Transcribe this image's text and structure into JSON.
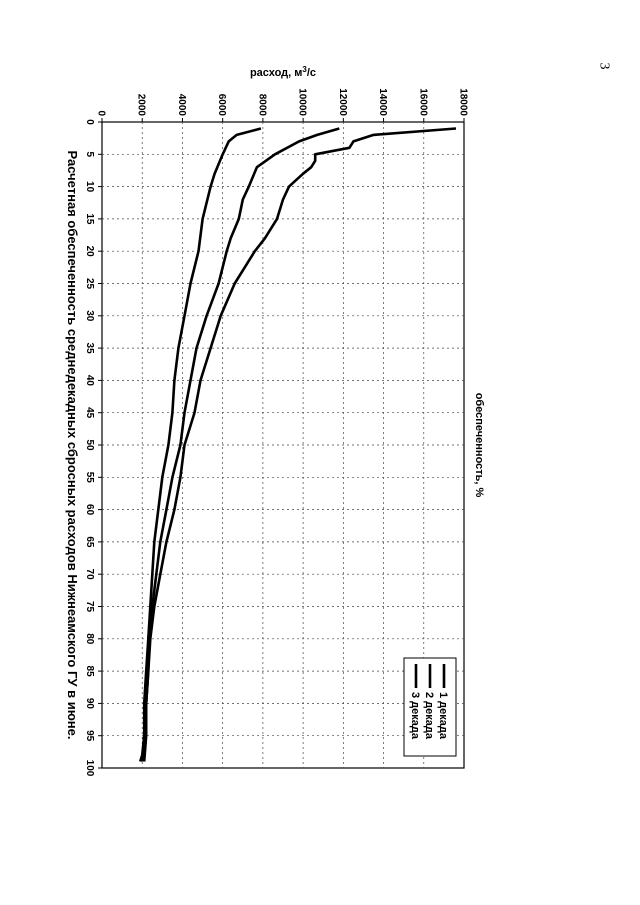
{
  "page_number": "3",
  "chart_data": {
    "type": "line",
    "title": "Расчетная обеспеченность среднедекадных сбросных расходов Нижнеамского ГУ в июне.",
    "xlabel": "обеспеченность, %",
    "ylabel": "расход, м³/с",
    "xlim": [
      0,
      100
    ],
    "ylim": [
      0,
      18000
    ],
    "x_ticks": [
      "0",
      "5",
      "10",
      "15",
      "20",
      "25",
      "30",
      "35",
      "40",
      "45",
      "50",
      "55",
      "60",
      "65",
      "70",
      "75",
      "80",
      "85",
      "90",
      "95",
      "100"
    ],
    "y_ticks": [
      "0",
      "2000",
      "4000",
      "6000",
      "8000",
      "10000",
      "12000",
      "14000",
      "16000",
      "18000"
    ],
    "grid": true,
    "legend_position": "top-right",
    "series": [
      {
        "name": "1 декада",
        "points": [
          [
            1,
            17600
          ],
          [
            2,
            13500
          ],
          [
            3,
            12500
          ],
          [
            4,
            12300
          ],
          [
            5,
            10600
          ],
          [
            6,
            10600
          ],
          [
            7,
            10400
          ],
          [
            8,
            10000
          ],
          [
            10,
            9300
          ],
          [
            12,
            9000
          ],
          [
            15,
            8700
          ],
          [
            18,
            8100
          ],
          [
            20,
            7600
          ],
          [
            22,
            7200
          ],
          [
            25,
            6600
          ],
          [
            30,
            5900
          ],
          [
            35,
            5400
          ],
          [
            40,
            4900
          ],
          [
            45,
            4600
          ],
          [
            50,
            4100
          ],
          [
            55,
            3900
          ],
          [
            60,
            3600
          ],
          [
            65,
            3200
          ],
          [
            70,
            2900
          ],
          [
            75,
            2600
          ],
          [
            80,
            2400
          ],
          [
            85,
            2300
          ],
          [
            90,
            2200
          ],
          [
            95,
            2100
          ],
          [
            98,
            2000
          ],
          [
            99,
            1900
          ]
        ]
      },
      {
        "name": "2 декада",
        "points": [
          [
            1,
            11800
          ],
          [
            2,
            10700
          ],
          [
            3,
            9800
          ],
          [
            5,
            8600
          ],
          [
            7,
            7700
          ],
          [
            10,
            7300
          ],
          [
            12,
            7000
          ],
          [
            15,
            6800
          ],
          [
            18,
            6400
          ],
          [
            20,
            6200
          ],
          [
            25,
            5800
          ],
          [
            30,
            5200
          ],
          [
            35,
            4700
          ],
          [
            40,
            4400
          ],
          [
            45,
            4100
          ],
          [
            50,
            3900
          ],
          [
            55,
            3500
          ],
          [
            60,
            3200
          ],
          [
            65,
            2900
          ],
          [
            70,
            2700
          ],
          [
            75,
            2500
          ],
          [
            80,
            2300
          ],
          [
            85,
            2200
          ],
          [
            90,
            2100
          ],
          [
            95,
            2100
          ],
          [
            99,
            2000
          ]
        ]
      },
      {
        "name": "3 декада",
        "points": [
          [
            1,
            7900
          ],
          [
            2,
            6700
          ],
          [
            3,
            6300
          ],
          [
            5,
            6000
          ],
          [
            8,
            5600
          ],
          [
            10,
            5400
          ],
          [
            15,
            5000
          ],
          [
            20,
            4800
          ],
          [
            25,
            4400
          ],
          [
            30,
            4100
          ],
          [
            35,
            3800
          ],
          [
            40,
            3600
          ],
          [
            45,
            3500
          ],
          [
            50,
            3300
          ],
          [
            55,
            3000
          ],
          [
            60,
            2800
          ],
          [
            65,
            2600
          ],
          [
            70,
            2500
          ],
          [
            75,
            2400
          ],
          [
            80,
            2300
          ],
          [
            85,
            2300
          ],
          [
            90,
            2200
          ],
          [
            95,
            2200
          ],
          [
            99,
            2100
          ]
        ]
      }
    ]
  }
}
